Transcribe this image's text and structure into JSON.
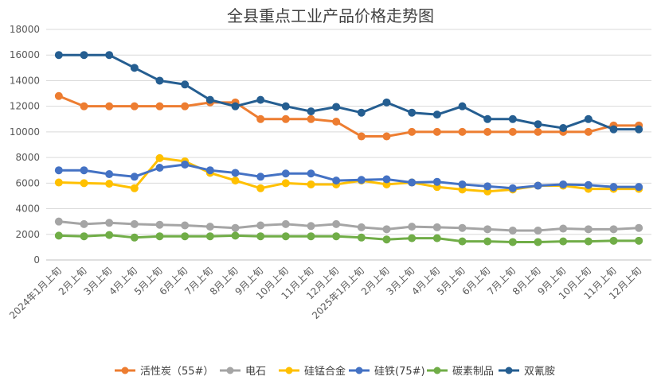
{
  "chart_data": {
    "type": "line",
    "title": "全县重点工业产品价格走势图",
    "ylim": [
      0,
      18000
    ],
    "yticks": [
      0,
      2000,
      4000,
      6000,
      8000,
      10000,
      12000,
      14000,
      16000,
      18000
    ],
    "grid": true,
    "legend_position": "bottom",
    "categories": [
      "2024年1月上旬",
      "2月上旬",
      "3月上旬",
      "4月上旬",
      "5月上旬",
      "6月上旬",
      "7月上旬",
      "8月上旬",
      "9月上旬",
      "10月上旬",
      "11月上旬",
      "12月上旬",
      "2025年1月上旬",
      "2月上旬",
      "3月上旬",
      "4月上旬",
      "5月上旬",
      "6月上旬",
      "7月上旬",
      "8月上旬",
      "9月上旬",
      "10月上旬",
      "11月上旬",
      "12月上旬"
    ],
    "series": [
      {
        "name": "活性炭（55#）",
        "color": "#ED7D31",
        "values": [
          12800,
          12000,
          12000,
          12000,
          12000,
          12000,
          12300,
          12300,
          11000,
          11000,
          11000,
          10800,
          9650,
          9650,
          10000,
          10000,
          10000,
          10000,
          10000,
          10000,
          10000,
          10000,
          10500,
          10500
        ]
      },
      {
        "name": "电石",
        "color": "#A5A5A5",
        "values": [
          3000,
          2800,
          2900,
          2800,
          2750,
          2700,
          2600,
          2500,
          2700,
          2800,
          2650,
          2800,
          2550,
          2400,
          2600,
          2550,
          2500,
          2400,
          2300,
          2300,
          2450,
          2400,
          2400,
          2500
        ]
      },
      {
        "name": "硅锰合金",
        "color": "#FFC000",
        "values": [
          6050,
          6000,
          5950,
          5600,
          7950,
          7700,
          6800,
          6200,
          5600,
          6000,
          5900,
          5900,
          6200,
          5900,
          6050,
          5700,
          5500,
          5350,
          5500,
          5800,
          5800,
          5550,
          5550,
          5550
        ]
      },
      {
        "name": "硅铁(75#)",
        "color": "#4472C4",
        "values": [
          7000,
          7000,
          6700,
          6500,
          7200,
          7450,
          7000,
          6800,
          6500,
          6750,
          6750,
          6200,
          6250,
          6300,
          6050,
          6100,
          5900,
          5750,
          5600,
          5800,
          5900,
          5850,
          5700,
          5700
        ]
      },
      {
        "name": "碳素制品",
        "color": "#70AD47",
        "values": [
          1900,
          1850,
          1950,
          1750,
          1850,
          1850,
          1850,
          1900,
          1850,
          1850,
          1850,
          1850,
          1750,
          1600,
          1700,
          1700,
          1450,
          1450,
          1400,
          1400,
          1450,
          1450,
          1500,
          1500
        ]
      },
      {
        "name": "双氰胺",
        "color": "#255E91",
        "values": [
          16000,
          16000,
          16000,
          15000,
          14000,
          13700,
          12500,
          12000,
          12500,
          12000,
          11600,
          11950,
          11500,
          12300,
          11500,
          11350,
          12000,
          11000,
          11000,
          10600,
          10300,
          11000,
          10200,
          10200
        ]
      }
    ]
  }
}
